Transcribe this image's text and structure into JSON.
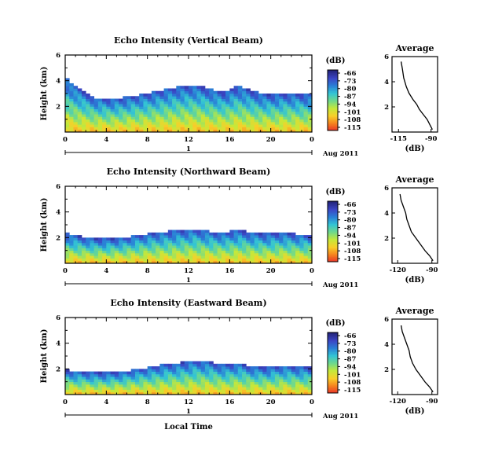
{
  "chart_data": [
    {
      "type": "heatmap",
      "title": "Echo Intensity (Vertical Beam)",
      "ylabel": "Height (km)",
      "yticks": [
        "2",
        "4",
        "6"
      ],
      "ylim": [
        0,
        6
      ],
      "xlabel": "",
      "xticks": [
        "0",
        "4",
        "8",
        "12",
        "16",
        "20",
        "0"
      ],
      "xlim": [
        0,
        24
      ],
      "day_label": "1",
      "date_label": "Aug 2011",
      "colorbar": {
        "unit": "(dB)",
        "tick_labels": [
          "-66",
          "-73",
          "-80",
          "-87",
          "-94",
          "-101",
          "-108",
          "-115"
        ],
        "colors": [
          "#e8302a",
          "#f5811f",
          "#f8cf2a",
          "#c6e83a",
          "#6fd98c",
          "#33c4d4",
          "#2a7fd6",
          "#3b45c4",
          "#23247a"
        ]
      },
      "echo_top_km": [
        4.0,
        3.2,
        2.6,
        2.5,
        2.6,
        2.8,
        3.0,
        3.3,
        3.5,
        3.6,
        3.3,
        3.0,
        3.5,
        3.1,
        2.8,
        2.9,
        2.9,
        2.8
      ],
      "average_profile": {
        "title": "Average",
        "xlabel": "(dB)",
        "xticks": [
          "-115",
          "-90"
        ],
        "yticks": [
          "2",
          "4",
          "6"
        ],
        "xlim": [
          -120,
          -85
        ],
        "ylim": [
          0,
          6
        ],
        "x": [
          -113,
          -112,
          -111,
          -109,
          -107,
          -104,
          -101,
          -99,
          -96,
          -93,
          -91,
          -89
        ],
        "y": [
          5.6,
          5.0,
          4.3,
          3.6,
          3.1,
          2.6,
          2.2,
          1.8,
          1.4,
          1.0,
          0.6,
          0.2
        ]
      }
    },
    {
      "type": "heatmap",
      "title": "Echo Intensity (Northward Beam)",
      "ylabel": "Height (km)",
      "yticks": [
        "2",
        "4",
        "6"
      ],
      "ylim": [
        0,
        6
      ],
      "xlabel": "",
      "xticks": [
        "0",
        "4",
        "8",
        "12",
        "16",
        "20",
        "0"
      ],
      "xlim": [
        0,
        24
      ],
      "day_label": "1",
      "date_label": "Aug 2011",
      "colorbar": {
        "unit": "(dB)",
        "tick_labels": [
          "-66",
          "-73",
          "-80",
          "-87",
          "-94",
          "-101",
          "-108",
          "-115"
        ],
        "colors": [
          "#e8302a",
          "#f5811f",
          "#f8cf2a",
          "#c6e83a",
          "#6fd98c",
          "#33c4d4",
          "#2a7fd6",
          "#3b45c4",
          "#23247a"
        ]
      },
      "echo_top_km": [
        2.2,
        2.0,
        1.8,
        1.8,
        1.9,
        2.1,
        2.3,
        2.4,
        2.5,
        2.6,
        2.4,
        2.3,
        2.5,
        2.3,
        2.2,
        2.3,
        2.2,
        2.1
      ],
      "average_profile": {
        "title": "Average",
        "xlabel": "(dB)",
        "xticks": [
          "-120",
          "-90"
        ],
        "yticks": [
          "2",
          "4",
          "6"
        ],
        "xlim": [
          -125,
          -85
        ],
        "ylim": [
          0,
          6
        ],
        "x": [
          -118,
          -117,
          -115,
          -113,
          -112,
          -110,
          -108,
          -104,
          -100,
          -96,
          -92,
          -89
        ],
        "y": [
          5.5,
          5.0,
          4.5,
          4.0,
          3.5,
          3.0,
          2.5,
          2.0,
          1.5,
          1.0,
          0.6,
          0.2
        ]
      }
    },
    {
      "type": "heatmap",
      "title": "Echo Intensity (Eastward Beam)",
      "ylabel": "Height (km)",
      "yticks": [
        "2",
        "4",
        "6"
      ],
      "ylim": [
        0,
        6
      ],
      "xlabel": "Local Time",
      "xticks": [
        "0",
        "4",
        "8",
        "12",
        "16",
        "20",
        "0"
      ],
      "xlim": [
        0,
        24
      ],
      "day_label": "1",
      "date_label": "Aug 2011",
      "colorbar": {
        "unit": "(dB)",
        "tick_labels": [
          "-66",
          "-73",
          "-80",
          "-87",
          "-94",
          "-101",
          "-108",
          "-115"
        ],
        "colors": [
          "#e8302a",
          "#f5811f",
          "#f8cf2a",
          "#c6e83a",
          "#6fd98c",
          "#33c4d4",
          "#2a7fd6",
          "#3b45c4",
          "#23247a"
        ]
      },
      "echo_top_km": [
        1.8,
        1.7,
        1.6,
        1.6,
        1.7,
        1.9,
        2.1,
        2.3,
        2.4,
        2.6,
        2.5,
        2.2,
        2.4,
        2.1,
        2.0,
        2.2,
        2.1,
        2.0
      ],
      "average_profile": {
        "title": "Average",
        "xlabel": "(dB)",
        "xticks": [
          "-120",
          "-90"
        ],
        "yticks": [
          "2",
          "4",
          "6"
        ],
        "xlim": [
          -125,
          -85
        ],
        "ylim": [
          0,
          6
        ],
        "x": [
          -117,
          -116,
          -114,
          -112,
          -110,
          -109,
          -107,
          -104,
          -100,
          -96,
          -92,
          -89
        ],
        "y": [
          5.5,
          5.0,
          4.5,
          4.0,
          3.5,
          3.0,
          2.5,
          2.0,
          1.5,
          1.0,
          0.6,
          0.2
        ]
      }
    }
  ]
}
